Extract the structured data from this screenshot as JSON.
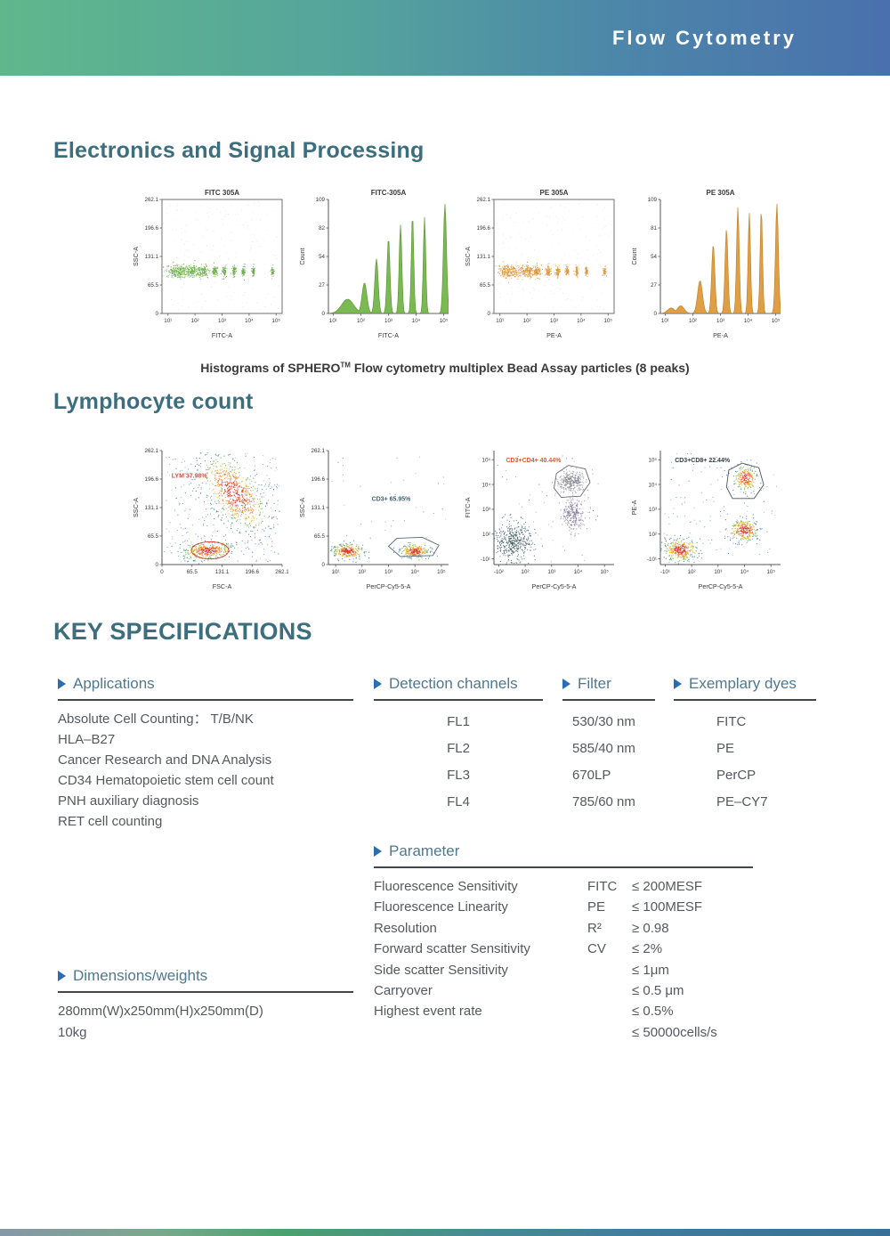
{
  "header": {
    "title": "Flow Cytometry"
  },
  "sections": {
    "electronics": {
      "title": "Electronics and Signal Processing",
      "caption_pre": "Histograms of SPHERO",
      "caption_tm": "TM",
      "caption_post": " Flow cytometry multiplex Bead Assay particles (8 peaks)"
    },
    "lymphocyte": {
      "title": "Lymphocyte count"
    },
    "key_specs": {
      "title": "KEY SPECIFICATIONS"
    }
  },
  "colors": {
    "banner_green": "#60b78c",
    "banner_blue": "#4a70ad",
    "heading_teal": "#3d6e7e",
    "spec_header": "#50788e",
    "bullet_blue": "#2a6db5",
    "plot_green": "#6cae43",
    "plot_orange": "#dd9336",
    "gate_red": "#cc3b2e"
  },
  "chart_data": [
    {
      "type": "scatter",
      "variant": "bead_bands",
      "title": "FITC 305A",
      "xlabel": "FITC-A",
      "ylabel": "SSC-A",
      "x_ticks": [
        "10¹",
        "10²",
        "10³",
        "10⁴",
        "10⁵"
      ],
      "y_ticks": [
        "262.1",
        "196.6",
        "131.1",
        "65.5",
        "0"
      ],
      "ylim": [
        0,
        262.1
      ],
      "xscale": "log",
      "box": true,
      "color": "#67ad41",
      "band_center_ssc": 95,
      "band_y": 0.63,
      "x_inset": [
        0.05,
        0.95
      ],
      "clusters": [
        {
          "x": 0.13,
          "rx": 0.05,
          "ry": 0.03,
          "n": 230
        },
        {
          "x": 0.26,
          "rx": 0.03,
          "ry": 0.027,
          "n": 140
        },
        {
          "x": 0.35,
          "rx": 0.02,
          "ry": 0.026,
          "n": 105
        },
        {
          "x": 0.44,
          "rx": 0.012,
          "ry": 0.025,
          "n": 80
        },
        {
          "x": 0.52,
          "rx": 0.009,
          "ry": 0.024,
          "n": 70
        },
        {
          "x": 0.6,
          "rx": 0.008,
          "ry": 0.023,
          "n": 62
        },
        {
          "x": 0.68,
          "rx": 0.007,
          "ry": 0.023,
          "n": 58
        },
        {
          "x": 0.76,
          "rx": 0.006,
          "ry": 0.022,
          "n": 55
        },
        {
          "x": 0.92,
          "rx": 0.006,
          "ry": 0.022,
          "n": 48
        }
      ],
      "noise": [
        {
          "n": 190,
          "color": "#e0ddd3"
        }
      ]
    },
    {
      "type": "histogram",
      "variant": "bead_hist",
      "title": "FITC-305A",
      "xlabel": "FITC-A",
      "ylabel": "Count",
      "x_ticks": [
        "10¹",
        "10²",
        "10³",
        "10⁴",
        "10⁵"
      ],
      "y_ticks": [
        "109",
        "82",
        "54",
        "27",
        "0"
      ],
      "ylim": [
        0,
        109
      ],
      "xscale": "log",
      "box": false,
      "color": "#74b649",
      "stroke": "#55962e",
      "x_inset": [
        0.04,
        0.96
      ],
      "peaks": [
        {
          "x": 0.16,
          "h": 0.13,
          "w": 0.05
        },
        {
          "x": 0.3,
          "h": 0.28,
          "w": 0.02
        },
        {
          "x": 0.4,
          "h": 0.5,
          "w": 0.014
        },
        {
          "x": 0.5,
          "h": 0.69,
          "w": 0.012
        },
        {
          "x": 0.6,
          "h": 0.81,
          "w": 0.011
        },
        {
          "x": 0.7,
          "h": 0.9,
          "w": 0.01
        },
        {
          "x": 0.8,
          "h": 0.88,
          "w": 0.01
        },
        {
          "x": 0.97,
          "h": 1.0,
          "w": 0.013
        }
      ],
      "peak_counts": [
        14,
        31,
        55,
        75,
        88,
        98,
        96,
        109
      ]
    },
    {
      "type": "scatter",
      "variant": "bead_bands",
      "title": "PE 305A",
      "xlabel": "PE-A",
      "ylabel": "SSC-A",
      "x_ticks": [
        "10¹",
        "10²",
        "10³",
        "10⁴",
        "10⁵"
      ],
      "y_ticks": [
        "262.1",
        "196.6",
        "131.1",
        "65.5",
        "0"
      ],
      "ylim": [
        0,
        262.1
      ],
      "xscale": "log",
      "box": true,
      "color": "#dd9336",
      "band_center_ssc": 95,
      "band_y": 0.63,
      "x_inset": [
        0.05,
        0.95
      ],
      "clusters": [
        {
          "x": 0.13,
          "rx": 0.05,
          "ry": 0.03,
          "n": 230
        },
        {
          "x": 0.27,
          "rx": 0.028,
          "ry": 0.027,
          "n": 140
        },
        {
          "x": 0.36,
          "rx": 0.018,
          "ry": 0.026,
          "n": 105
        },
        {
          "x": 0.45,
          "rx": 0.011,
          "ry": 0.025,
          "n": 80
        },
        {
          "x": 0.53,
          "rx": 0.009,
          "ry": 0.024,
          "n": 70
        },
        {
          "x": 0.61,
          "rx": 0.008,
          "ry": 0.023,
          "n": 62
        },
        {
          "x": 0.69,
          "rx": 0.007,
          "ry": 0.023,
          "n": 58
        },
        {
          "x": 0.77,
          "rx": 0.006,
          "ry": 0.022,
          "n": 55
        },
        {
          "x": 0.92,
          "rx": 0.006,
          "ry": 0.022,
          "n": 48
        }
      ],
      "noise": [
        {
          "n": 190,
          "color": "#e8e2d4"
        }
      ]
    },
    {
      "type": "histogram",
      "variant": "bead_hist",
      "title": "PE 305A",
      "xlabel": "PE-A",
      "ylabel": "Count",
      "x_ticks": [
        "10¹",
        "10²",
        "10³",
        "10⁴",
        "10⁵"
      ],
      "y_ticks": [
        "109",
        "81",
        "54",
        "27",
        "0"
      ],
      "ylim": [
        0,
        109
      ],
      "xscale": "log",
      "box": false,
      "color": "#e09a3c",
      "stroke": "#c07f22",
      "x_inset": [
        0.04,
        0.96
      ],
      "peaks": [
        {
          "x": 0.09,
          "h": 0.05,
          "w": 0.03
        },
        {
          "x": 0.17,
          "h": 0.07,
          "w": 0.028
        },
        {
          "x": 0.33,
          "h": 0.3,
          "w": 0.02
        },
        {
          "x": 0.44,
          "h": 0.63,
          "w": 0.013
        },
        {
          "x": 0.55,
          "h": 0.77,
          "w": 0.012
        },
        {
          "x": 0.645,
          "h": 0.97,
          "w": 0.011
        },
        {
          "x": 0.74,
          "h": 0.92,
          "w": 0.01
        },
        {
          "x": 0.84,
          "h": 0.95,
          "w": 0.01
        },
        {
          "x": 0.97,
          "h": 1.0,
          "w": 0.012
        }
      ],
      "peak_counts": [
        8,
        33,
        69,
        84,
        106,
        100,
        104,
        109
      ]
    },
    {
      "type": "scatter",
      "variant": "flow_density",
      "title": "",
      "xlabel": "FSC-A",
      "ylabel": "SSC-A",
      "x_ticks": [
        "0",
        "65.5",
        "131.1",
        "196.6",
        "262.1"
      ],
      "y_ticks": [
        "262.1",
        "196.6",
        "131.1",
        "65.5",
        "0"
      ],
      "xlim": [
        0,
        262.1
      ],
      "ylim": [
        0,
        262.1
      ],
      "box": false,
      "labels": [
        {
          "text": "LYM 37.98%",
          "x": 0.08,
          "y": 0.24,
          "color": "#e04a3a"
        }
      ],
      "gates": [
        {
          "shape": "ellipse",
          "cx": 0.4,
          "cy": 0.875,
          "rx": 0.155,
          "ry": 0.075,
          "color": "#cc3b2e"
        }
      ],
      "clusters": [
        {
          "x": 0.6,
          "y": 0.38,
          "rx": 0.095,
          "ry": 0.195,
          "angle": -38,
          "n": 700,
          "palette": "density"
        },
        {
          "x": 0.38,
          "y": 0.88,
          "rx": 0.1,
          "ry": 0.036,
          "angle": -6,
          "n": 350,
          "palette": "density"
        }
      ],
      "noise": [
        {
          "n": 230,
          "color": "#3f6db2"
        },
        {
          "n": 80,
          "color": "#4f9e58"
        }
      ]
    },
    {
      "type": "scatter",
      "variant": "flow_density",
      "title": "",
      "xlabel": "PerCP-Cy5-5-A",
      "ylabel": "SSC-A",
      "x_ticks": [
        "10¹",
        "10²",
        "10³",
        "10⁴",
        "10⁵"
      ],
      "y_ticks": [
        "262.1",
        "196.6",
        "131.1",
        "65.5",
        "0"
      ],
      "ylim": [
        0,
        262.1
      ],
      "xscale": "log",
      "box": false,
      "x_inset": [
        0.06,
        0.94
      ],
      "labels": [
        {
          "text": "CD3+ 65.95%",
          "x": 0.36,
          "y": 0.44,
          "color": "#44606e"
        }
      ],
      "gates": [
        {
          "shape": "polygon",
          "points": [
            [
              0.5,
              0.84
            ],
            [
              0.57,
              0.77
            ],
            [
              0.78,
              0.76
            ],
            [
              0.92,
              0.83
            ],
            [
              0.87,
              0.92
            ],
            [
              0.6,
              0.93
            ]
          ],
          "color": "#5a6b78"
        }
      ],
      "clusters": [
        {
          "x": 0.16,
          "y": 0.885,
          "rx": 0.065,
          "ry": 0.034,
          "angle": 0,
          "n": 280,
          "palette": "density"
        },
        {
          "x": 0.72,
          "y": 0.885,
          "rx": 0.058,
          "ry": 0.03,
          "angle": 0,
          "n": 260,
          "palette": "density"
        }
      ],
      "noise": [
        {
          "n": 40,
          "color": "#58809a"
        }
      ]
    },
    {
      "type": "scatter",
      "variant": "flow_density",
      "title": "",
      "xlabel": "PerCP-Cy5-5-A",
      "ylabel": "FITC-A",
      "x_ticks": [
        "-10²",
        "10²",
        "10³",
        "10⁴",
        "10⁵"
      ],
      "y_ticks": [
        "10⁵",
        "10⁴",
        "10³",
        "10²",
        "-10¹"
      ],
      "xscale": "log",
      "yscale": "log",
      "box": false,
      "x_inset": [
        0.04,
        0.92
      ],
      "y_inset": [
        0.08,
        0.95
      ],
      "labels": [
        {
          "text": "CD3+CD4+ 40.44%",
          "x": 0.1,
          "y": 0.1,
          "color": "#e05a30"
        }
      ],
      "gates": [
        {
          "shape": "polygon",
          "points": [
            [
              0.5,
              0.33
            ],
            [
              0.52,
              0.2
            ],
            [
              0.62,
              0.13
            ],
            [
              0.76,
              0.16
            ],
            [
              0.8,
              0.28
            ],
            [
              0.72,
              0.4
            ],
            [
              0.56,
              0.41
            ]
          ],
          "color": "#6b6b75"
        }
      ],
      "clusters": [
        {
          "x": 0.16,
          "y": 0.8,
          "rx": 0.09,
          "ry": 0.085,
          "angle": 0,
          "n": 430,
          "palette": "slate"
        },
        {
          "x": 0.645,
          "y": 0.27,
          "rx": 0.055,
          "ry": 0.045,
          "angle": 0,
          "n": 290,
          "palette": "gray"
        },
        {
          "x": 0.66,
          "y": 0.56,
          "rx": 0.045,
          "ry": 0.075,
          "angle": 0,
          "n": 250,
          "palette": "purple"
        }
      ],
      "noise": [
        {
          "n": 55,
          "color": "#5d6e78"
        }
      ]
    },
    {
      "type": "scatter",
      "variant": "flow_density",
      "title": "",
      "xlabel": "PerCP-Cy5-5-A",
      "ylabel": "PE-A",
      "x_ticks": [
        "-10¹",
        "10²",
        "10³",
        "10⁴",
        "10⁵"
      ],
      "y_ticks": [
        "10⁵",
        "10⁴",
        "10³",
        "10²",
        "-10¹"
      ],
      "xscale": "log",
      "yscale": "log",
      "box": false,
      "x_inset": [
        0.04,
        0.92
      ],
      "y_inset": [
        0.08,
        0.95
      ],
      "labels": [
        {
          "text": "CD3+CD8+ 22.44%",
          "x": 0.12,
          "y": 0.1,
          "color": "#2e3f4a"
        }
      ],
      "gates": [
        {
          "shape": "polygon",
          "points": [
            [
              0.55,
              0.32
            ],
            [
              0.57,
              0.17
            ],
            [
              0.68,
              0.11
            ],
            [
              0.82,
              0.15
            ],
            [
              0.86,
              0.3
            ],
            [
              0.78,
              0.42
            ],
            [
              0.6,
              0.42
            ]
          ],
          "color": "#4a5560"
        }
      ],
      "clusters": [
        {
          "x": 0.17,
          "y": 0.87,
          "rx": 0.068,
          "ry": 0.048,
          "angle": 0,
          "n": 340,
          "palette": "density"
        },
        {
          "x": 0.7,
          "y": 0.7,
          "rx": 0.058,
          "ry": 0.05,
          "angle": 0,
          "n": 300,
          "palette": "density"
        },
        {
          "x": 0.71,
          "y": 0.24,
          "rx": 0.048,
          "ry": 0.055,
          "angle": 0,
          "n": 230,
          "palette": "density"
        }
      ],
      "noise": [
        {
          "n": 130,
          "color": "#3b6fb5"
        }
      ]
    }
  ],
  "specs": {
    "applications": {
      "title": "Applications",
      "items": [
        "Absolute Cell Counting： T/B/NK",
        "HLA–B27",
        "Cancer Research and DNA Analysis",
        "CD34 Hematopoietic stem cell count",
        "PNH auxiliary diagnosis",
        "RET cell counting"
      ]
    },
    "detection": {
      "title": "Detection channels",
      "items": [
        "FL1",
        "FL2",
        "FL3",
        "FL4"
      ]
    },
    "filter": {
      "title": "Filter",
      "items": [
        "530/30 nm",
        "585/40 nm",
        "670LP",
        "785/60 nm"
      ]
    },
    "dyes": {
      "title": "Exemplary dyes",
      "items": [
        "FITC",
        "PE",
        "PerCP",
        "PE–CY7"
      ]
    },
    "parameter": {
      "title": "Parameter",
      "rows": [
        {
          "name": "Fluorescence Sensitivity",
          "mid": "FITC",
          "value": "≤ 200MESF"
        },
        {
          "name": "Fluorescence Linearity",
          "mid": "PE",
          "value": "≤ 100MESF"
        },
        {
          "name": "Resolution",
          "mid": "R²",
          "value": "≥ 0.98"
        },
        {
          "name": "Forward scatter Sensitivity",
          "mid": "CV",
          "value": "≤ 2%"
        },
        {
          "name": "Side scatter Sensitivity",
          "mid": "",
          "value": "≤ 1μm"
        },
        {
          "name": "Carryover",
          "mid": "",
          "value": "≤ 0.5 μm"
        },
        {
          "name": "Highest event rate",
          "mid": "",
          "value": "≤ 0.5%"
        },
        {
          "name": "",
          "mid": "",
          "value": "≤ 50000cells/s"
        }
      ]
    },
    "dimensions": {
      "title": "Dimensions/weights",
      "items": [
        "280mm(W)x250mm(H)x250mm(D)",
        "10kg"
      ]
    }
  }
}
